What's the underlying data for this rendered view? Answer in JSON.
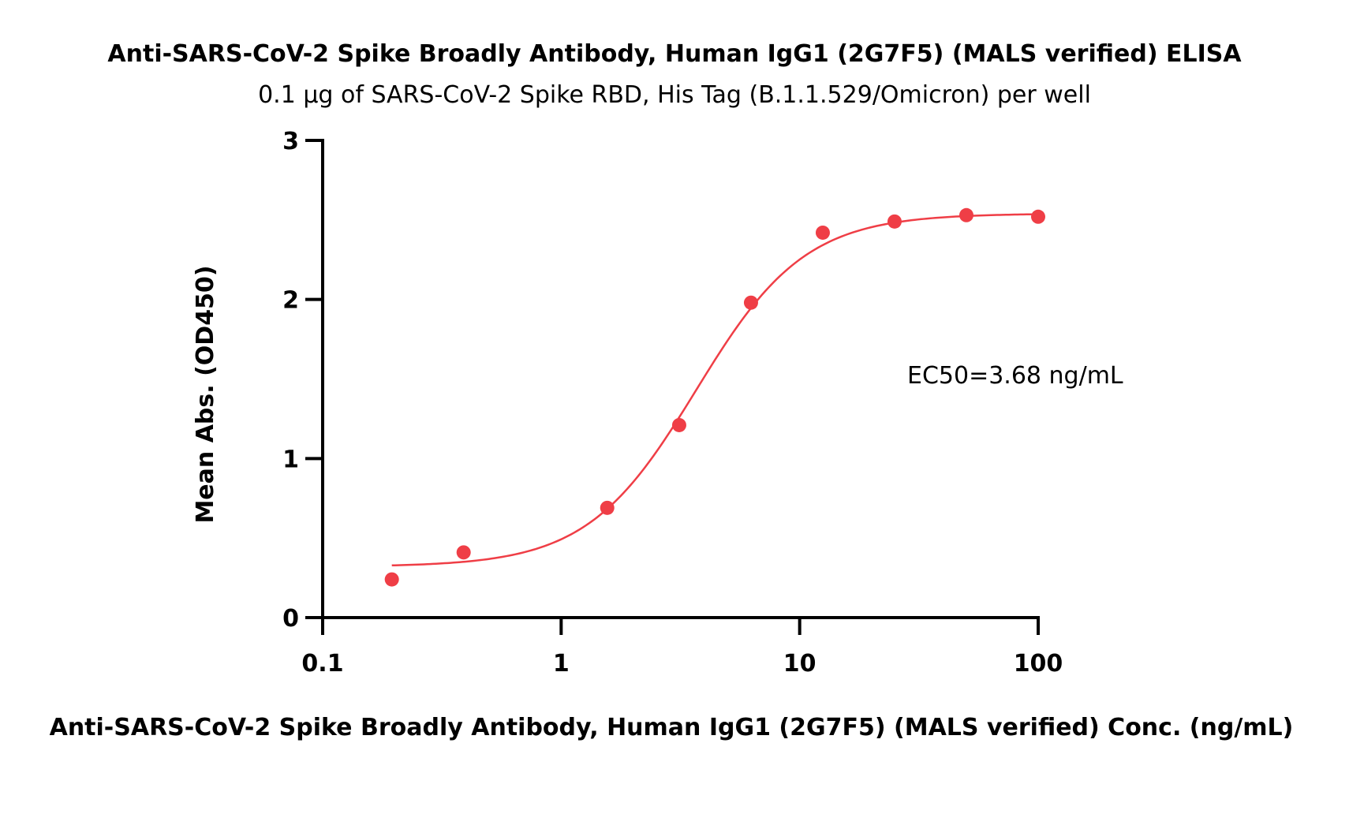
{
  "chart_data": {
    "type": "scatter",
    "title": "Anti-SARS-CoV-2 Spike Broadly Antibody, Human IgG1 (2G7F5) (MALS verified) ELISA",
    "subtitle": "0.1 μg of SARS-CoV-2 Spike RBD, His Tag (B.1.1.529/Omicron) per well",
    "xlabel": "Anti-SARS-CoV-2 Spike Broadly Antibody, Human IgG1 (2G7F5) (MALS verified) Conc. (ng/mL)",
    "ylabel": "Mean Abs. (OD450)",
    "x_scale": "log",
    "xlim": [
      0.1,
      100
    ],
    "ylim": [
      0,
      3
    ],
    "x_ticks": [
      "0.1",
      "1",
      "10",
      "100"
    ],
    "y_ticks": [
      "0",
      "1",
      "2",
      "3"
    ],
    "grid": false,
    "annotation": "EC50=3.68 ng/mL",
    "colors": {
      "series": "#ef3e46",
      "axis": "#000000"
    },
    "series": [
      {
        "marker": "circle",
        "x": [
          0.195,
          0.39,
          1.56,
          3.125,
          6.25,
          12.5,
          25,
          50,
          100
        ],
        "y": [
          0.24,
          0.41,
          0.69,
          1.21,
          1.98,
          2.42,
          2.49,
          2.53,
          2.52
        ]
      }
    ],
    "fit_curve": {
      "model": "4PL",
      "bottom": 0.32,
      "top": 2.54,
      "ec50": 3.68,
      "hill": 1.9,
      "x_range": [
        0.195,
        100
      ]
    }
  }
}
